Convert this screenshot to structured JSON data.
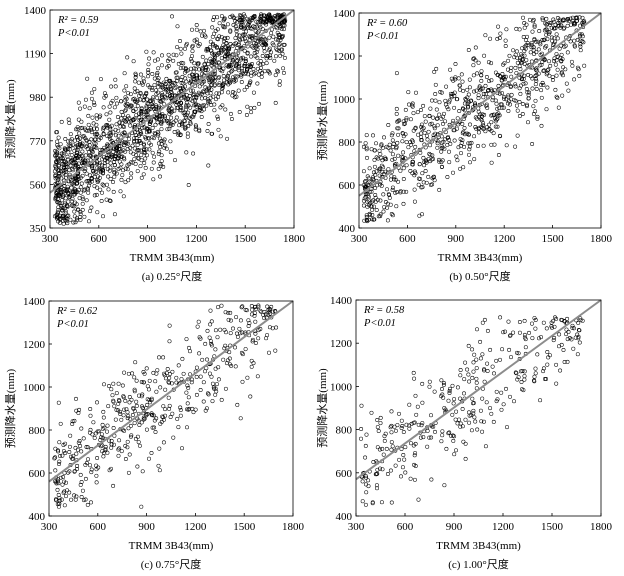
{
  "chart_data": [
    {
      "type": "scatter",
      "caption": "(a) 0.25°尺度",
      "xlabel": "TRMM 3B43(mm)",
      "ylabel": "预测降水量(mm)",
      "xlim": [
        300,
        1800
      ],
      "ylim": [
        350,
        1400
      ],
      "xticks": [
        "300",
        "600",
        "900",
        "1200",
        "1500",
        "1800"
      ],
      "yticks": [
        "350",
        "560",
        "770",
        "980",
        "1190",
        "1400"
      ],
      "r2": "R² = 0.59",
      "p": "P<0.01",
      "fit_line": {
        "x": [
          300,
          1800
        ],
        "y": [
          520,
          1400
        ]
      },
      "points_sample": {
        "n": 1800,
        "x_range": [
          330,
          1750
        ],
        "y_range": [
          370,
          1380
        ]
      },
      "grid": false
    },
    {
      "type": "scatter",
      "caption": "(b) 0.50°尺度",
      "xlabel": "TRMM 3B43(mm)",
      "ylabel": "预测降水量(mm)",
      "xlim": [
        300,
        1800
      ],
      "ylim": [
        400,
        1400
      ],
      "xticks": [
        "300",
        "600",
        "900",
        "1200",
        "1500",
        "1800"
      ],
      "yticks": [
        "400",
        "600",
        "800",
        "1000",
        "1200",
        "1400"
      ],
      "r2": "R² = 0.60",
      "p": "P<0.01",
      "fit_line": {
        "x": [
          300,
          1800
        ],
        "y": [
          550,
          1400
        ]
      },
      "points_sample": {
        "n": 900,
        "x_range": [
          330,
          1700
        ],
        "y_range": [
          430,
          1380
        ]
      },
      "grid": false
    },
    {
      "type": "scatter",
      "caption": "(c) 0.75°尺度",
      "xlabel": "TRMM 3B43(mm)",
      "ylabel": "预测降水量(mm)",
      "xlim": [
        300,
        1800
      ],
      "ylim": [
        400,
        1400
      ],
      "xticks": [
        "300",
        "600",
        "900",
        "1200",
        "1500",
        "1800"
      ],
      "yticks": [
        "400",
        "600",
        "800",
        "1000",
        "1200",
        "1400"
      ],
      "r2": "R² = 0.62",
      "p": "P<0.01",
      "fit_line": {
        "x": [
          300,
          1800
        ],
        "y": [
          560,
          1400
        ]
      },
      "points_sample": {
        "n": 500,
        "x_range": [
          330,
          1700
        ],
        "y_range": [
          440,
          1380
        ]
      },
      "grid": false
    },
    {
      "type": "scatter",
      "caption": "(c) 1.00°尺度",
      "xlabel": "TRMM 3B43(mm)",
      "ylabel": "预测降水量(mm)",
      "xlim": [
        300,
        1800
      ],
      "ylim": [
        400,
        1400
      ],
      "xticks": [
        "300",
        "600",
        "900",
        "1200",
        "1500",
        "1800"
      ],
      "yticks": [
        "400",
        "600",
        "800",
        "1000",
        "1200",
        "1400"
      ],
      "r2": "R² = 0.58",
      "p": "P<0.01",
      "fit_line": {
        "x": [
          300,
          1800
        ],
        "y": [
          570,
          1400
        ]
      },
      "points_sample": {
        "n": 350,
        "x_range": [
          330,
          1700
        ],
        "y_range": [
          440,
          1320
        ]
      },
      "grid": false
    }
  ],
  "colors": {
    "marker": "#000000",
    "fit_line": "#8c8c8c",
    "axis": "#000000"
  }
}
